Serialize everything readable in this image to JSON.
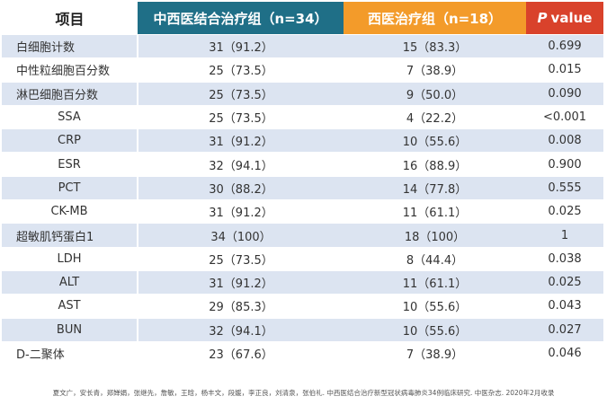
{
  "header": {
    "col1": "项目",
    "col2": "中西医结合治疗组（n=34）",
    "col3": "西医治疗组（n=18）",
    "col4_italic": "P",
    "col4_rest": "value"
  },
  "rows": [
    {
      "name": "白细胞计数",
      "a": "31（91.2）",
      "b": "15（83.3）",
      "p": "0.699"
    },
    {
      "name": "中性粒细胞百分数",
      "a": "25（73.5）",
      "b": "7（38.9）",
      "p": "0.015"
    },
    {
      "name": "淋巴细胞百分数",
      "a": "25（73.5）",
      "b": "9（50.0）",
      "p": "0.090"
    },
    {
      "name": "SSA",
      "a": "25（73.5）",
      "b": "4（22.2）",
      "p": "<0.001"
    },
    {
      "name": "CRP",
      "a": "31（91.2）",
      "b": "10（55.6）",
      "p": "0.008"
    },
    {
      "name": "ESR",
      "a": "32（94.1）",
      "b": "16（88.9）",
      "p": "0.900"
    },
    {
      "name": "PCT",
      "a": "30（88.2）",
      "b": "14（77.8）",
      "p": "0.555"
    },
    {
      "name": "CK-MB",
      "a": "31（91.2）",
      "b": "11（61.1）",
      "p": "0.025"
    },
    {
      "name": "超敏肌钙蛋白1",
      "a": "34（100）",
      "b": "18（100）",
      "p": "1"
    },
    {
      "name": "LDH",
      "a": "25（73.5）",
      "b": "8（44.4）",
      "p": "0.038"
    },
    {
      "name": "ALT",
      "a": "31（91.2）",
      "b": "11（61.1）",
      "p": "0.025"
    },
    {
      "name": "AST",
      "a": "29（85.3）",
      "b": "10（55.6）",
      "p": "0.043"
    },
    {
      "name": "BUN",
      "a": "32（94.1）",
      "b": "10（55.6）",
      "p": "0.027"
    },
    {
      "name": "D-二聚体",
      "a": "23（67.6）",
      "b": "7（38.9）",
      "p": "0.046"
    }
  ],
  "footer": "夏文广，安长青，郑婵娟，张继先，詹敏，王晗，杨丰文，段媛，李正良，刘清泉，张伯礼. 中西医结合治疗新型冠状病毒肺炎34例临床研究. 中医杂志. 2020年2月收录"
}
